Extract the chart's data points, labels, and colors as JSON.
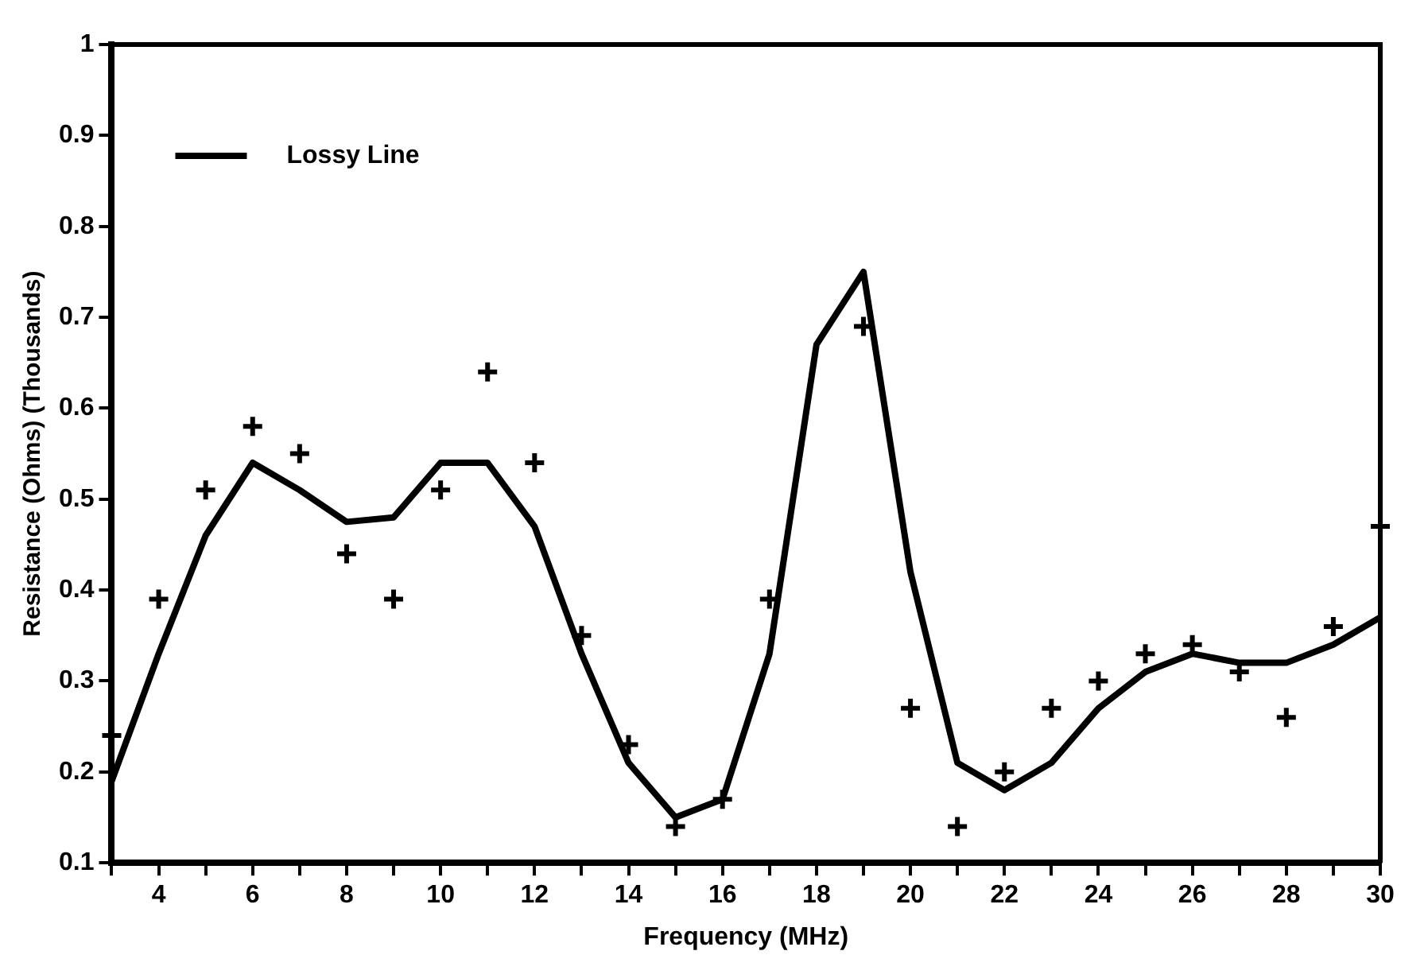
{
  "chart_data": {
    "type": "line",
    "xlabel": "Frequency (MHz)",
    "ylabel": "Resistance (Ohms) (Thousands)",
    "xlim": [
      3,
      30
    ],
    "ylim": [
      0.1,
      1
    ],
    "xticks": [
      {
        "value": 3,
        "label": null
      },
      4,
      {
        "value": 5,
        "label": null
      },
      6,
      {
        "value": 7,
        "label": null
      },
      8,
      {
        "value": 9,
        "label": null
      },
      10,
      {
        "value": 11,
        "label": null
      },
      12,
      {
        "value": 13,
        "label": null
      },
      14,
      {
        "value": 15,
        "label": null
      },
      16,
      {
        "value": 17,
        "label": null
      },
      18,
      {
        "value": 19,
        "label": null
      },
      20,
      {
        "value": 21,
        "label": null
      },
      22,
      {
        "value": 23,
        "label": null
      },
      24,
      {
        "value": 25,
        "label": null
      },
      26,
      {
        "value": 27,
        "label": null
      },
      28,
      {
        "value": 29,
        "label": null
      },
      30
    ],
    "yticks": [
      0.1,
      0.2,
      0.3,
      0.4,
      0.5,
      0.6,
      0.7,
      0.8,
      0.9,
      1
    ],
    "grid": false,
    "legend": "top left",
    "series": [
      {
        "type": "scatter",
        "color": "#000000",
        "marker": "cross",
        "x": [
          3,
          4,
          5,
          6,
          7,
          8,
          9,
          10,
          11,
          12,
          13,
          14,
          15,
          16,
          17,
          19,
          20,
          21,
          22,
          23,
          24,
          25,
          26,
          27,
          28,
          29,
          30
        ],
        "values": [
          0.24,
          0.39,
          0.51,
          0.58,
          0.55,
          0.44,
          0.39,
          0.51,
          0.64,
          0.54,
          0.35,
          0.23,
          0.14,
          0.17,
          0.39,
          0.69,
          0.27,
          0.14,
          0.2,
          0.27,
          0.3,
          0.33,
          0.34,
          0.31,
          0.26,
          0.36,
          0.47
        ]
      },
      {
        "type": "line",
        "name": "Lossy Line",
        "color": "#000000",
        "line_style": "solid",
        "marker": "none",
        "x": [
          3,
          4,
          5,
          6,
          7,
          8,
          9,
          10,
          11,
          12,
          13,
          14,
          15,
          16,
          17,
          18,
          19,
          20,
          21,
          22,
          23,
          24,
          25,
          26,
          27,
          28,
          29,
          30
        ],
        "values": [
          0.19,
          0.33,
          0.46,
          0.54,
          0.51,
          0.475,
          0.48,
          0.54,
          0.54,
          0.47,
          0.33,
          0.21,
          0.15,
          0.17,
          0.33,
          0.67,
          0.75,
          0.42,
          0.21,
          0.18,
          0.21,
          0.27,
          0.31,
          0.33,
          0.32,
          0.32,
          0.34,
          0.37
        ]
      }
    ]
  }
}
